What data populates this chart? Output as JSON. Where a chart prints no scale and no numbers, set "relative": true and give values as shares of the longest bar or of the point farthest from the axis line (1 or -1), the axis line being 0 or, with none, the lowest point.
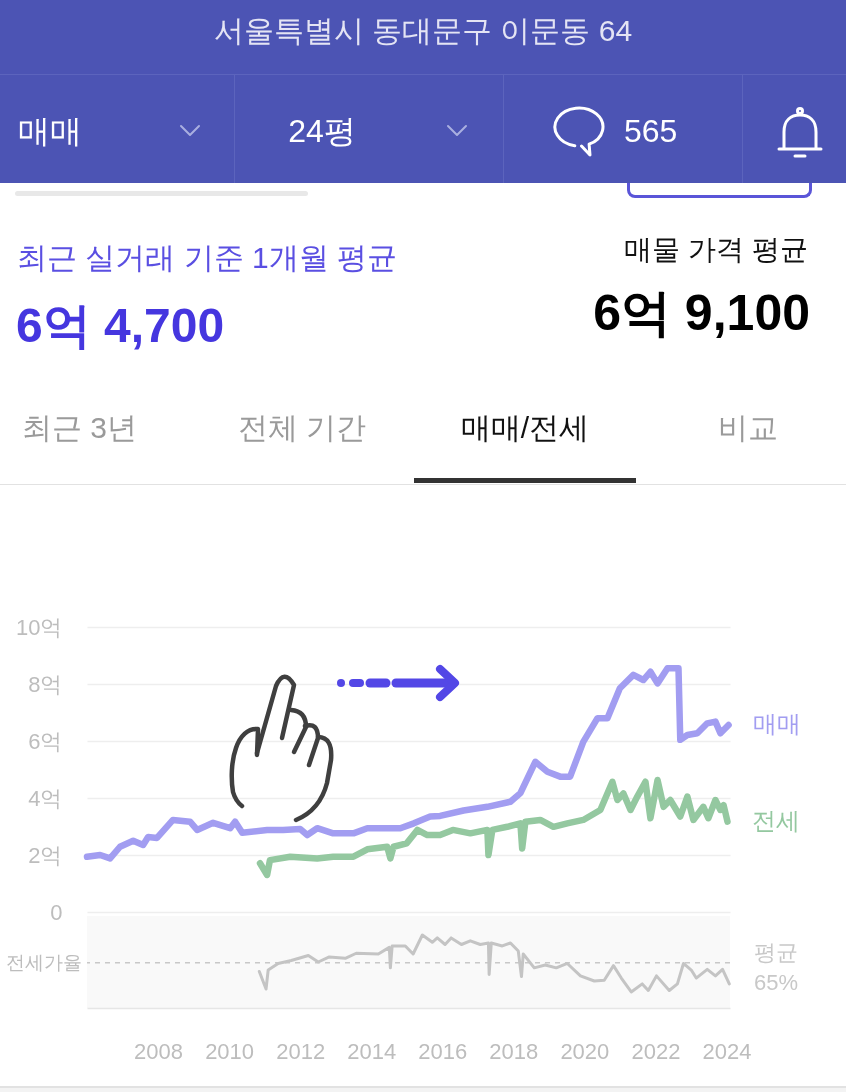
{
  "chart_data": [
    {
      "type": "other",
      "title": "서울특별시 동대문구 이문동 64",
      "annotations": [
        "매매",
        "24평",
        "565",
        "최근 실거래 기준 1개월 평균",
        "6억 4,700",
        "매물 가격 평균",
        "6억 9,100",
        "최근 3년",
        "전체 기간",
        "매매/전세",
        "비교"
      ]
    },
    {
      "type": "line",
      "xlim": [
        2006.0,
        2024.1
      ],
      "ylim": [
        0,
        10
      ],
      "yticks": [
        0,
        {
          "value": 2,
          "label": "2억"
        },
        {
          "value": 4,
          "label": "4억"
        },
        {
          "value": 6,
          "label": "6억"
        },
        {
          "value": 8,
          "label": "8억"
        },
        {
          "value": 10,
          "label": "10억"
        }
      ],
      "grid": "y",
      "tick_labels": "y",
      "series": [
        {
          "name": "매매",
          "color": "#a29df1",
          "x": [
            2006.0,
            2006.37,
            2006.65,
            2006.93,
            2007.3,
            2007.58,
            2007.72,
            2007.97,
            2008.42,
            2008.9,
            2009.1,
            2009.55,
            2010.03,
            2010.17,
            2010.37,
            2011.07,
            2011.52,
            2012.0,
            2012.2,
            2012.48,
            2012.93,
            2013.5,
            2013.89,
            2014.82,
            2015.2,
            2015.66,
            2015.94,
            2016.6,
            2017.27,
            2017.92,
            2018.2,
            2018.62,
            2018.96,
            2019.32,
            2019.6,
            2019.97,
            2020.37,
            2020.65,
            2021.0,
            2021.38,
            2021.66,
            2021.86,
            2022.06,
            2022.34,
            2022.65,
            2022.7,
            2022.9,
            2023.18,
            2023.46,
            2023.69,
            2023.83,
            2024.06
          ],
          "values": [
            1.94,
            2.0,
            1.88,
            2.29,
            2.5,
            2.35,
            2.63,
            2.6,
            3.23,
            3.17,
            2.88,
            3.13,
            2.94,
            3.17,
            2.78,
            2.88,
            2.88,
            2.91,
            2.7,
            2.94,
            2.76,
            2.76,
            2.94,
            2.94,
            3.11,
            3.35,
            3.37,
            3.56,
            3.69,
            3.87,
            4.17,
            5.27,
            4.92,
            4.75,
            4.75,
            5.97,
            6.8,
            6.8,
            7.85,
            8.32,
            8.14,
            8.43,
            8.02,
            8.55,
            8.55,
            6.04,
            6.21,
            6.27,
            6.62,
            6.68,
            6.27,
            6.56
          ]
        },
        {
          "name": "전세",
          "color": "#94c8a0",
          "x": [
            2010.87,
            2011.07,
            2011.15,
            2011.72,
            2012.48,
            2012.93,
            2013.5,
            2013.89,
            2014.45,
            2014.54,
            2014.63,
            2015.0,
            2015.3,
            2015.58,
            2015.94,
            2016.3,
            2016.79,
            2017.27,
            2017.3,
            2017.41,
            2017.83,
            2018.2,
            2018.25,
            2018.34,
            2018.76,
            2019.13,
            2019.52,
            2019.97,
            2020.45,
            2020.79,
            2020.93,
            2021.1,
            2021.3,
            2021.49,
            2021.72,
            2021.86,
            2022.06,
            2022.23,
            2022.42,
            2022.7,
            2022.9,
            2023.07,
            2023.35,
            2023.49,
            2023.69,
            2023.83,
            2023.92,
            2024.03
          ],
          "values": [
            1.71,
            1.3,
            1.82,
            1.94,
            1.88,
            1.94,
            1.94,
            2.2,
            2.29,
            1.88,
            2.29,
            2.41,
            2.88,
            2.7,
            2.7,
            2.88,
            2.76,
            2.88,
            2.0,
            2.88,
            2.99,
            3.11,
            2.23,
            3.17,
            3.23,
            2.99,
            3.11,
            3.23,
            3.58,
            4.57,
            3.93,
            4.16,
            3.58,
            4.05,
            4.57,
            3.29,
            4.63,
            3.69,
            3.93,
            3.35,
            4.05,
            3.23,
            3.69,
            3.29,
            3.93,
            3.58,
            3.75,
            3.17
          ]
        }
      ]
    },
    {
      "type": "line",
      "relative": true,
      "ylabel": "전세가율",
      "xlim": [
        2006.0,
        2024.1
      ],
      "xticks": [
        2008,
        2010,
        2012,
        2014,
        2016,
        2018,
        2020,
        2022,
        2024
      ],
      "tick_labels": "x",
      "ref_lines": [
        {
          "axis": "y",
          "value": 0.62,
          "label": "평균 65%",
          "color": "#c8c8c8",
          "line_style": "dashed"
        }
      ],
      "series": [
        {
          "color": "#c4c4c4",
          "x": [
            2010.85,
            2011.04,
            2011.1,
            2011.38,
            2011.75,
            2012.23,
            2012.51,
            2012.82,
            2013.27,
            2013.58,
            2014.2,
            2014.51,
            2014.54,
            2014.59,
            2014.96,
            2015.18,
            2015.44,
            2015.72,
            2015.86,
            2016.08,
            2016.25,
            2016.54,
            2016.79,
            2017.07,
            2017.3,
            2017.32,
            2017.38,
            2017.69,
            2017.92,
            2018.14,
            2018.23,
            2018.28,
            2018.59,
            2018.9,
            2019.21,
            2019.52,
            2019.89,
            2020.28,
            2020.56,
            2020.82,
            2021.04,
            2021.32,
            2021.63,
            2021.8,
            2022.03,
            2022.39,
            2022.62,
            2022.79,
            2023.01,
            2023.15,
            2023.46,
            2023.69,
            2023.89,
            2024.08
          ],
          "values": [
            0.5,
            0.26,
            0.52,
            0.61,
            0.65,
            0.72,
            0.63,
            0.7,
            0.68,
            0.75,
            0.74,
            0.83,
            0.55,
            0.85,
            0.85,
            0.74,
            1.0,
            0.9,
            0.96,
            0.87,
            0.96,
            0.87,
            0.92,
            0.87,
            0.89,
            0.46,
            0.89,
            0.85,
            0.89,
            0.78,
            0.43,
            0.74,
            0.55,
            0.59,
            0.55,
            0.61,
            0.44,
            0.37,
            0.38,
            0.58,
            0.41,
            0.22,
            0.33,
            0.24,
            0.44,
            0.24,
            0.33,
            0.61,
            0.52,
            0.41,
            0.53,
            0.44,
            0.53,
            0.33
          ]
        }
      ]
    }
  ]
}
